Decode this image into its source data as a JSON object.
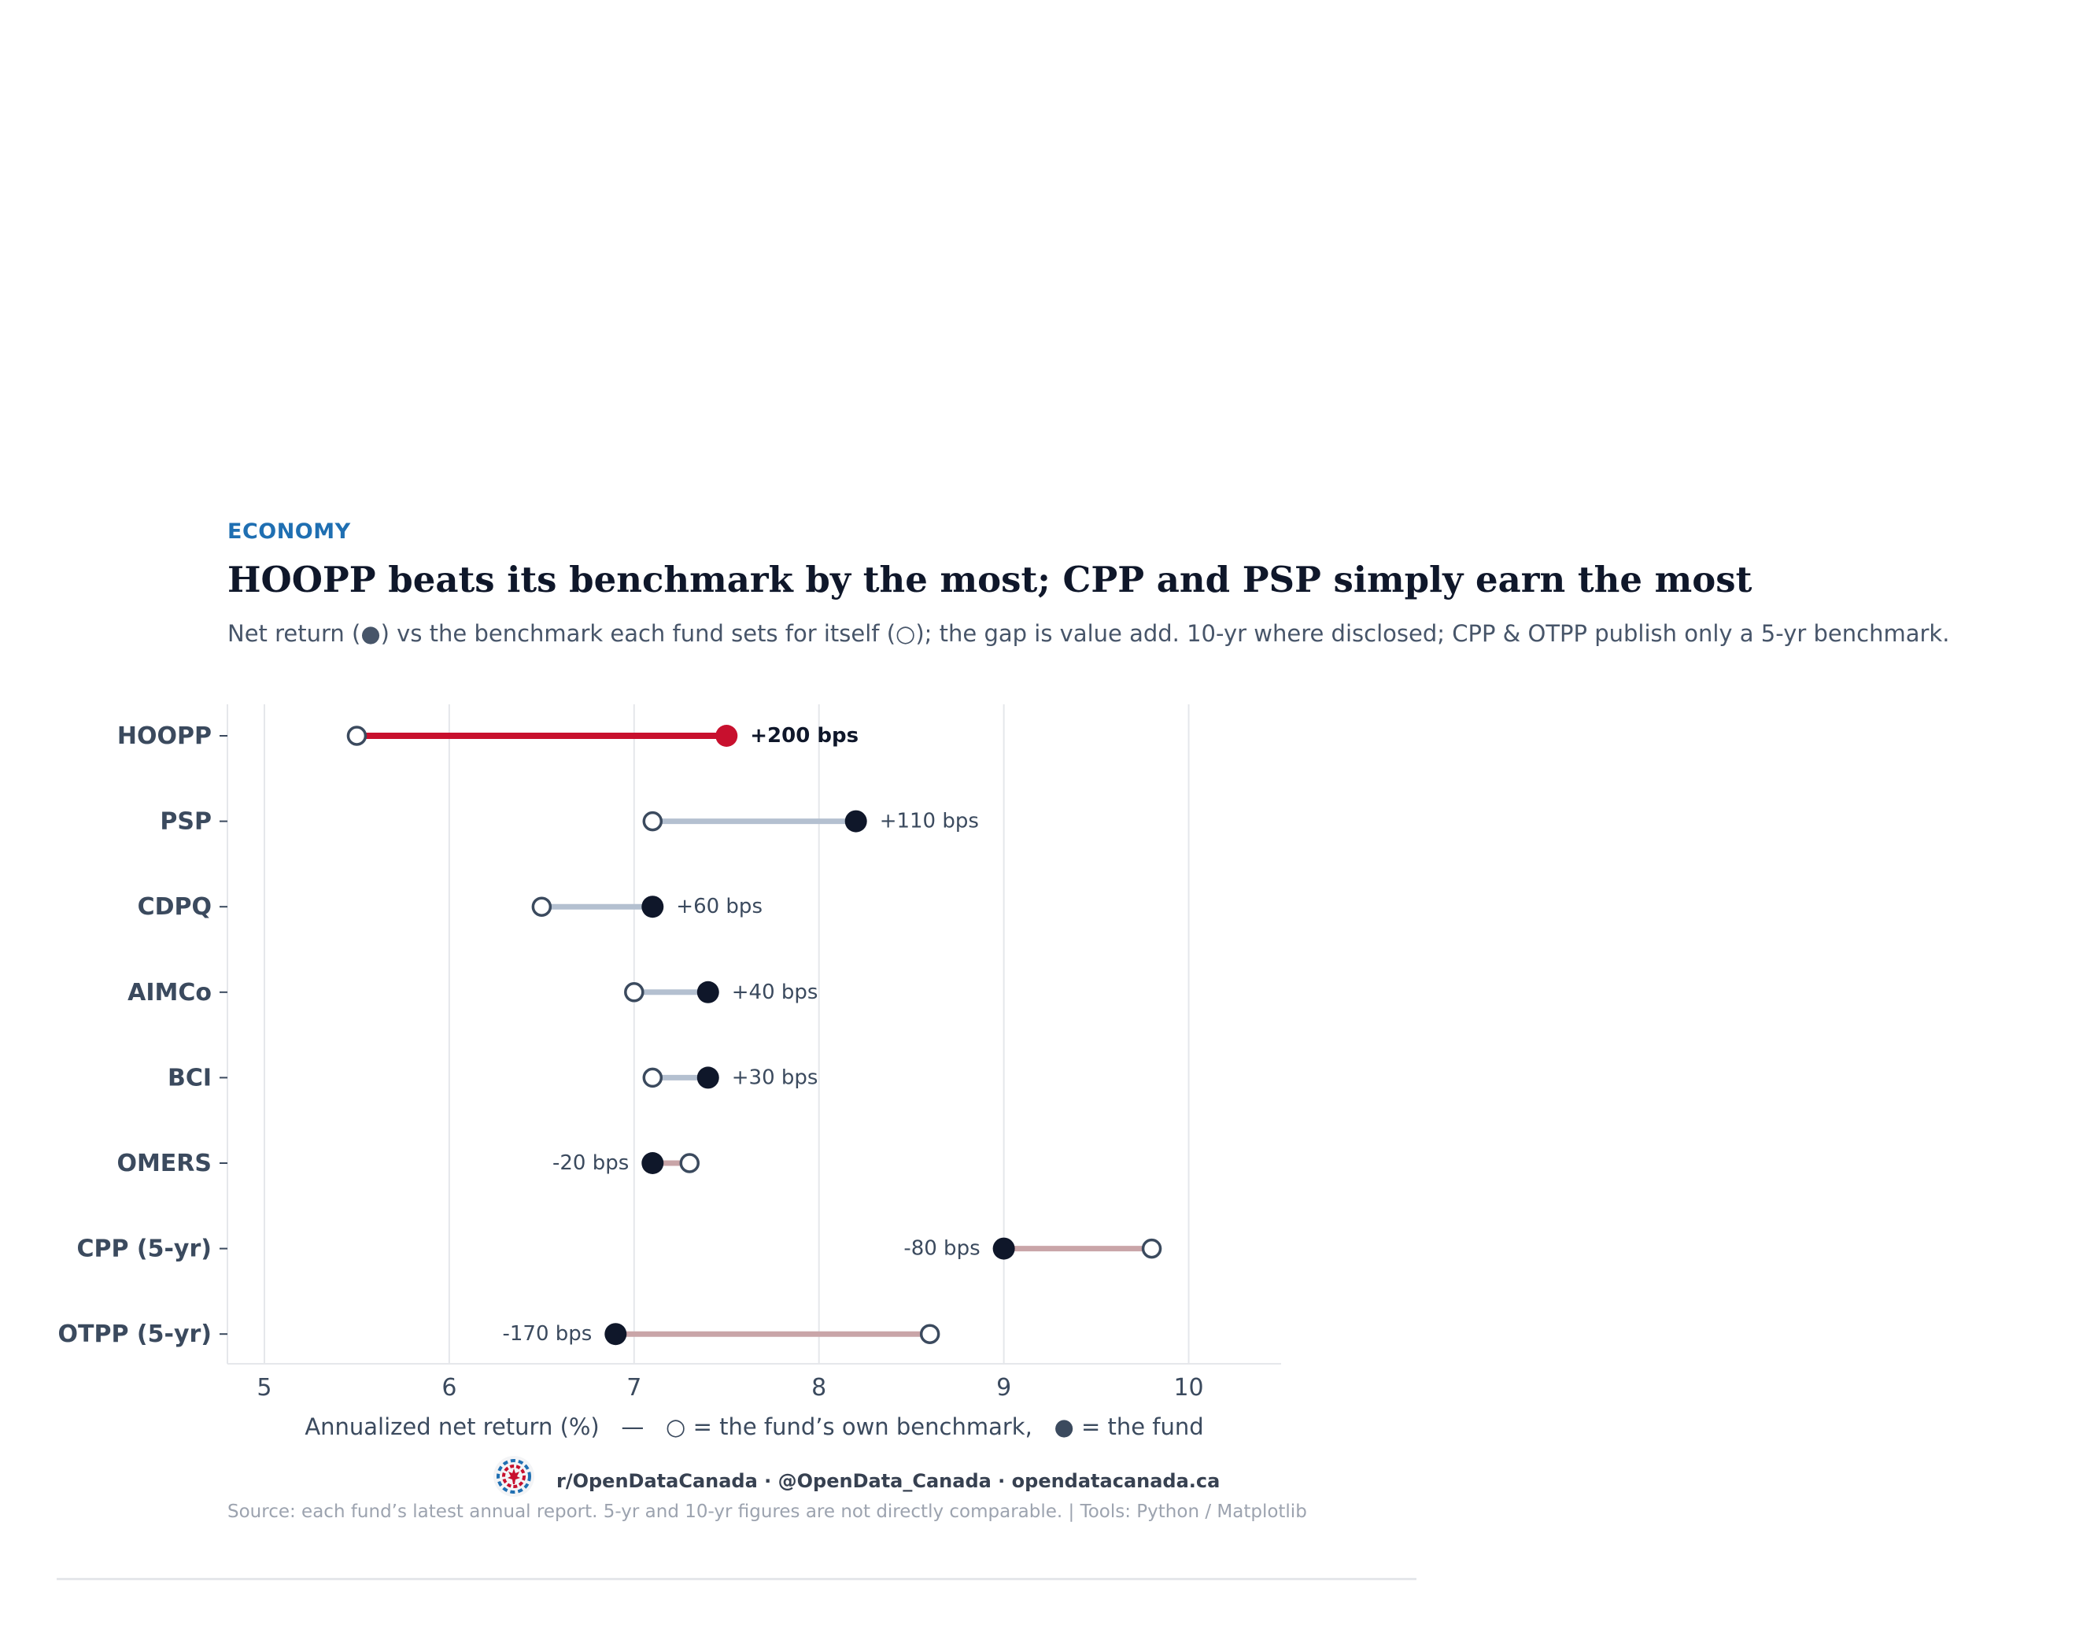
{
  "header": {
    "kicker": "ECONOMY",
    "title": "HOOPP beats its benchmark by the most; CPP and PSP simply earn the most",
    "subtitle": "Net return (●) vs the benchmark each fund sets for itself (○); the gap is value add. 10-yr where disclosed; CPP & OTPP publish only a 5-yr benchmark."
  },
  "chart_data": {
    "type": "dumbbell",
    "xlabel": "Annualized net return (%)   —   ○ = the fund’s own benchmark,   ● = the fund",
    "xlim": [
      4.8,
      10.5
    ],
    "xticks": [
      5,
      6,
      7,
      8,
      9,
      10
    ],
    "grid": "vertical",
    "rows": [
      {
        "label": "HOOPP",
        "benchmark": 5.5,
        "fund": 7.5,
        "gap_label": "+200 bps",
        "highlight": true
      },
      {
        "label": "PSP",
        "benchmark": 7.1,
        "fund": 8.2,
        "gap_label": "+110 bps"
      },
      {
        "label": "CDPQ",
        "benchmark": 6.5,
        "fund": 7.1,
        "gap_label": "+60 bps"
      },
      {
        "label": "AIMCo",
        "benchmark": 7.0,
        "fund": 7.4,
        "gap_label": "+40 bps"
      },
      {
        "label": "BCI",
        "benchmark": 7.1,
        "fund": 7.4,
        "gap_label": "+30 bps"
      },
      {
        "label": "OMERS",
        "benchmark": 7.3,
        "fund": 7.1,
        "gap_label": "-20 bps"
      },
      {
        "label": "CPP (5-yr)",
        "benchmark": 9.8,
        "fund": 9.0,
        "gap_label": "-80 bps"
      },
      {
        "label": "OTPP (5-yr)",
        "benchmark": 8.6,
        "fund": 6.9,
        "gap_label": "-170 bps"
      }
    ],
    "colors": {
      "highlight": "#c8102e",
      "fund": "#0f172a",
      "positive_gap": "#b4c0d0",
      "negative_gap": "#c9a5a8",
      "benchmark_edge": "#3b4a5e",
      "grid": "#e5e7eb",
      "axis_text": "#3b4a5e"
    }
  },
  "footer": {
    "brand": "r/OpenDataCanada  ·  @OpenData_Canada  ·  opendatacanada.ca",
    "source": "Source: each fund’s latest annual report. 5-yr and 10-yr figures are not directly comparable.  |  Tools: Python / Matplotlib",
    "logo_icon": "maple-leaf-logo-icon"
  }
}
